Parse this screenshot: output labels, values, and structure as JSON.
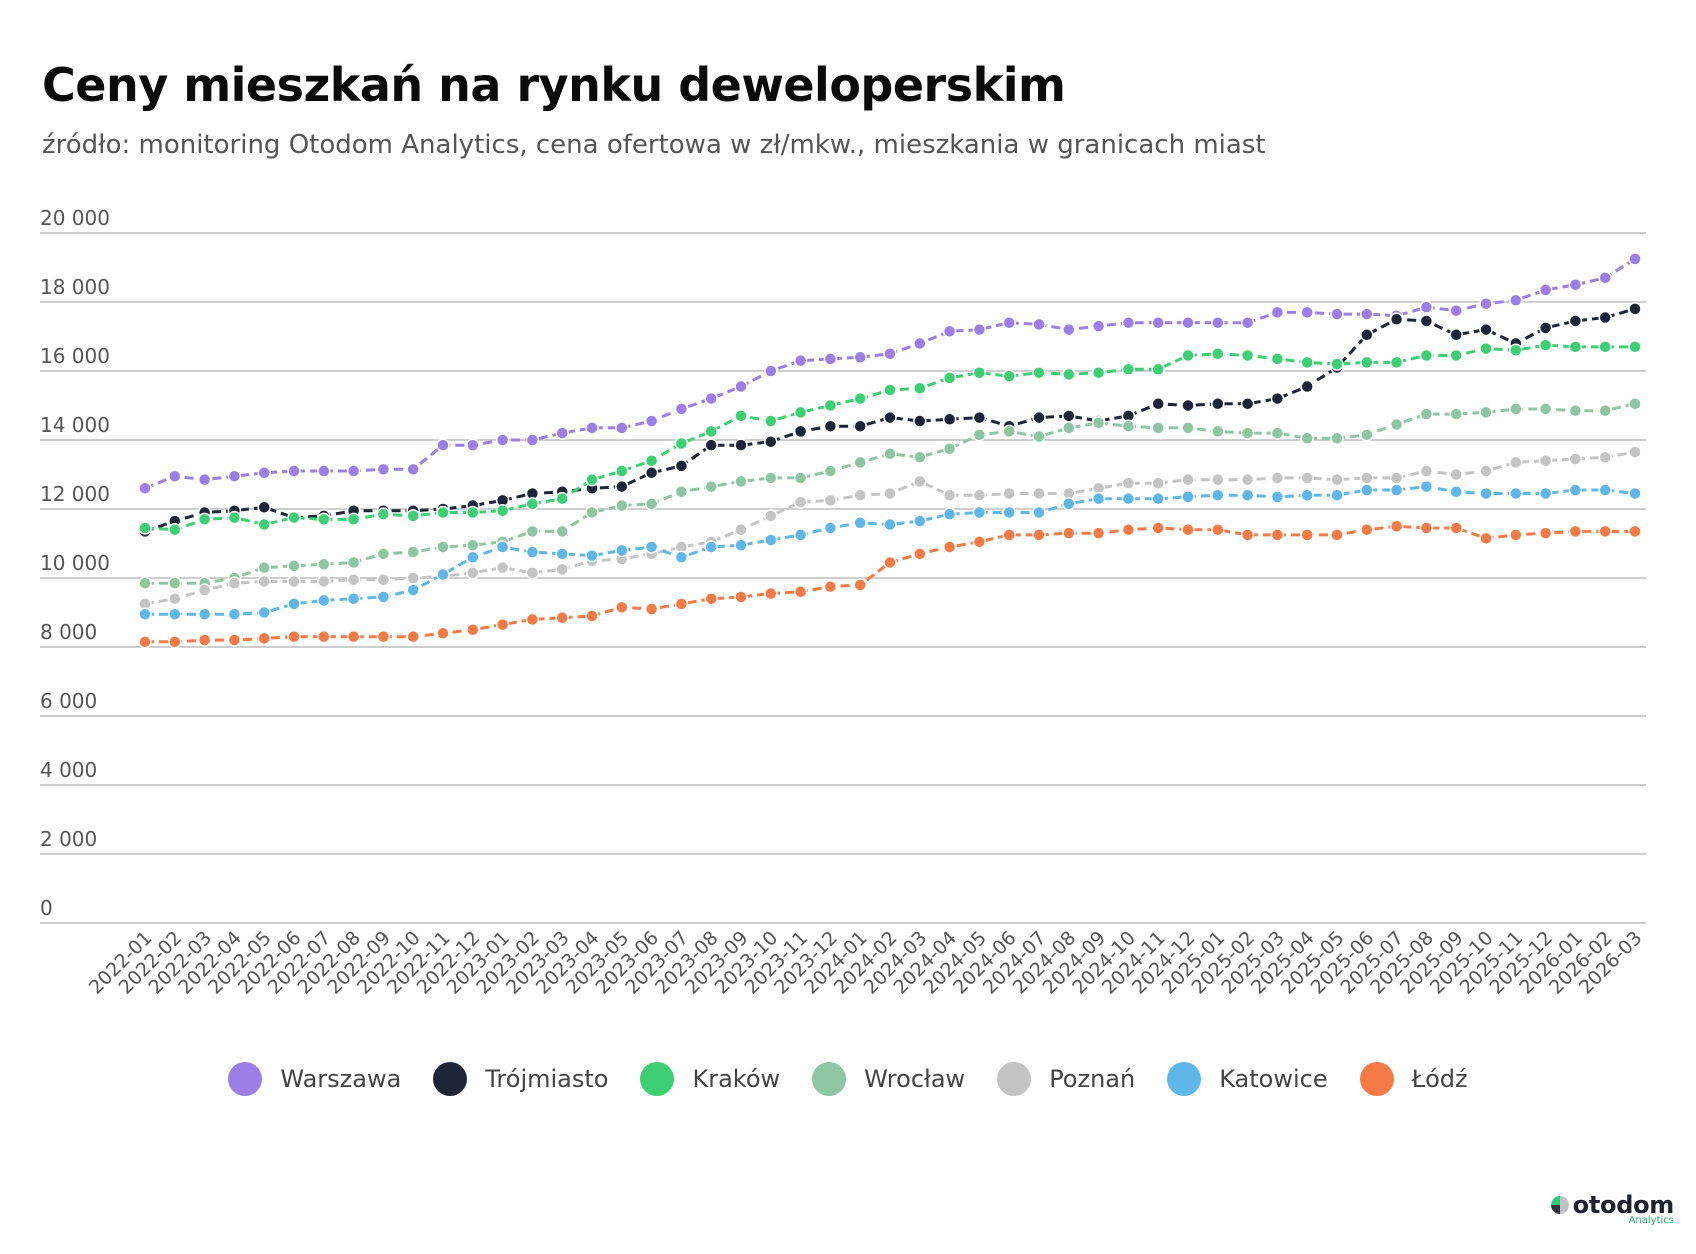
{
  "title": "Ceny mieszkań na rynku deweloperskim",
  "subtitle": "źródło: monitoring Otodom Analytics, cena ofertowa w zł/mkw., mieszkania w granicach miast",
  "brand": {
    "name": "otodom",
    "tagline": "Analytics"
  },
  "chart_data": {
    "type": "line",
    "title": "Ceny mieszkań na rynku deweloperskim",
    "xlabel": "",
    "ylabel": "",
    "ylim": [
      0,
      20000
    ],
    "yticks": [
      0,
      2000,
      4000,
      6000,
      8000,
      10000,
      12000,
      14000,
      16000,
      18000,
      20000
    ],
    "ytick_labels": [
      "0",
      "2 000",
      "4 000",
      "6 000",
      "8 000",
      "10 000",
      "12 000",
      "14 000",
      "16 000",
      "18 000",
      "20 000"
    ],
    "grid": true,
    "legend_position": "bottom-center",
    "categories": [
      "2022-01",
      "2022-02",
      "2022-03",
      "2022-04",
      "2022-05",
      "2022-06",
      "2022-07",
      "2022-08",
      "2022-09",
      "2022-10",
      "2022-11",
      "2022-12",
      "2023-01",
      "2023-02",
      "2023-03",
      "2023-04",
      "2023-05",
      "2023-06",
      "2023-07",
      "2023-08",
      "2023-09",
      "2023-10",
      "2023-11",
      "2023-12",
      "2024-01",
      "2024-02",
      "2024-03",
      "2024-04",
      "2024-05",
      "2024-06",
      "2024-07",
      "2024-08",
      "2024-09",
      "2024-10",
      "2024-11",
      "2024-12",
      "2025-01",
      "2025-02",
      "2025-03",
      "2025-04",
      "2025-05",
      "2025-06",
      "2025-07",
      "2025-08",
      "2025-09",
      "2025-10",
      "2025-11",
      "2025-12",
      "2026-01",
      "2026-02",
      "2026-03"
    ],
    "series": [
      {
        "name": "Warszawa",
        "color": "#9b7fe6",
        "values": [
          12600,
          12950,
          12850,
          12950,
          13050,
          13100,
          13100,
          13100,
          13150,
          13150,
          13850,
          13850,
          14000,
          14000,
          14200,
          14350,
          14350,
          14550,
          14900,
          15200,
          15550,
          16000,
          16300,
          16350,
          16400,
          16500,
          16800,
          17150,
          17200,
          17400,
          17350,
          17200,
          17300,
          17400,
          17400,
          17400,
          17400,
          17400,
          17700,
          17700,
          17650,
          17650,
          17600,
          17850,
          17750,
          17950,
          18050,
          18350,
          18500,
          18700,
          19250
        ]
      },
      {
        "name": "Trójmiasto",
        "color": "#1e2536",
        "values": [
          11350,
          11650,
          11900,
          11950,
          12050,
          11750,
          11800,
          11950,
          11950,
          11950,
          12000,
          12100,
          12250,
          12450,
          12500,
          12600,
          12650,
          13050,
          13250,
          13850,
          13850,
          13950,
          14250,
          14400,
          14400,
          14650,
          14550,
          14600,
          14650,
          14400,
          14650,
          14700,
          14550,
          14700,
          15050,
          15000,
          15050,
          15050,
          15200,
          15550,
          16100,
          17050,
          17500,
          17450,
          17050,
          17200,
          16800,
          17250,
          17450,
          17550,
          17800
        ]
      },
      {
        "name": "Kraków",
        "color": "#3ccf73",
        "values": [
          11450,
          11400,
          11700,
          11750,
          11550,
          11750,
          11700,
          11700,
          11850,
          11800,
          11900,
          11900,
          11950,
          12150,
          12300,
          12850,
          13100,
          13400,
          13900,
          14250,
          14700,
          14550,
          14800,
          15000,
          15200,
          15450,
          15500,
          15800,
          15950,
          15850,
          15950,
          15900,
          15950,
          16050,
          16050,
          16450,
          16500,
          16450,
          16350,
          16250,
          16200,
          16250,
          16250,
          16450,
          16450,
          16650,
          16600,
          16750,
          16700,
          16700,
          16700
        ]
      },
      {
        "name": "Wrocław",
        "color": "#8ec5a5",
        "values": [
          9850,
          9850,
          9850,
          10000,
          10300,
          10350,
          10400,
          10450,
          10700,
          10750,
          10900,
          10950,
          11050,
          11350,
          11350,
          11900,
          12100,
          12150,
          12500,
          12650,
          12800,
          12900,
          12900,
          13100,
          13350,
          13600,
          13500,
          13750,
          14150,
          14250,
          14100,
          14350,
          14500,
          14400,
          14350,
          14350,
          14250,
          14200,
          14200,
          14050,
          14050,
          14150,
          14450,
          14750,
          14750,
          14800,
          14900,
          14900,
          14850,
          14850,
          15050
        ]
      },
      {
        "name": "Poznań",
        "color": "#c4c4c4",
        "values": [
          9250,
          9400,
          9650,
          9850,
          9900,
          9900,
          9900,
          9950,
          9950,
          10000,
          10050,
          10150,
          10300,
          10150,
          10250,
          10500,
          10550,
          10700,
          10900,
          11050,
          11400,
          11800,
          12200,
          12250,
          12400,
          12450,
          12800,
          12400,
          12400,
          12450,
          12450,
          12450,
          12600,
          12750,
          12750,
          12850,
          12850,
          12850,
          12900,
          12900,
          12850,
          12900,
          12900,
          13100,
          13000,
          13100,
          13350,
          13400,
          13450,
          13500,
          13650
        ]
      },
      {
        "name": "Katowice",
        "color": "#5fb6e8",
        "values": [
          8950,
          8950,
          8950,
          8950,
          9000,
          9250,
          9350,
          9400,
          9450,
          9650,
          10100,
          10600,
          10900,
          10750,
          10700,
          10650,
          10800,
          10900,
          10600,
          10900,
          10950,
          11100,
          11250,
          11450,
          11600,
          11550,
          11650,
          11850,
          11900,
          11900,
          11900,
          12150,
          12300,
          12300,
          12300,
          12350,
          12400,
          12400,
          12350,
          12400,
          12400,
          12550,
          12550,
          12650,
          12500,
          12450,
          12450,
          12450,
          12550,
          12550,
          12450
        ]
      },
      {
        "name": "Łódź",
        "color": "#f57a45",
        "values": [
          8150,
          8150,
          8200,
          8200,
          8250,
          8300,
          8300,
          8300,
          8300,
          8300,
          8400,
          8500,
          8650,
          8800,
          8850,
          8900,
          9150,
          9100,
          9250,
          9400,
          9450,
          9550,
          9600,
          9750,
          9800,
          10450,
          10700,
          10900,
          11050,
          11250,
          11250,
          11300,
          11300,
          11400,
          11450,
          11400,
          11400,
          11250,
          11250,
          11250,
          11250,
          11400,
          11500,
          11450,
          11450,
          11150,
          11250,
          11300,
          11350,
          11350,
          11350
        ]
      }
    ]
  }
}
